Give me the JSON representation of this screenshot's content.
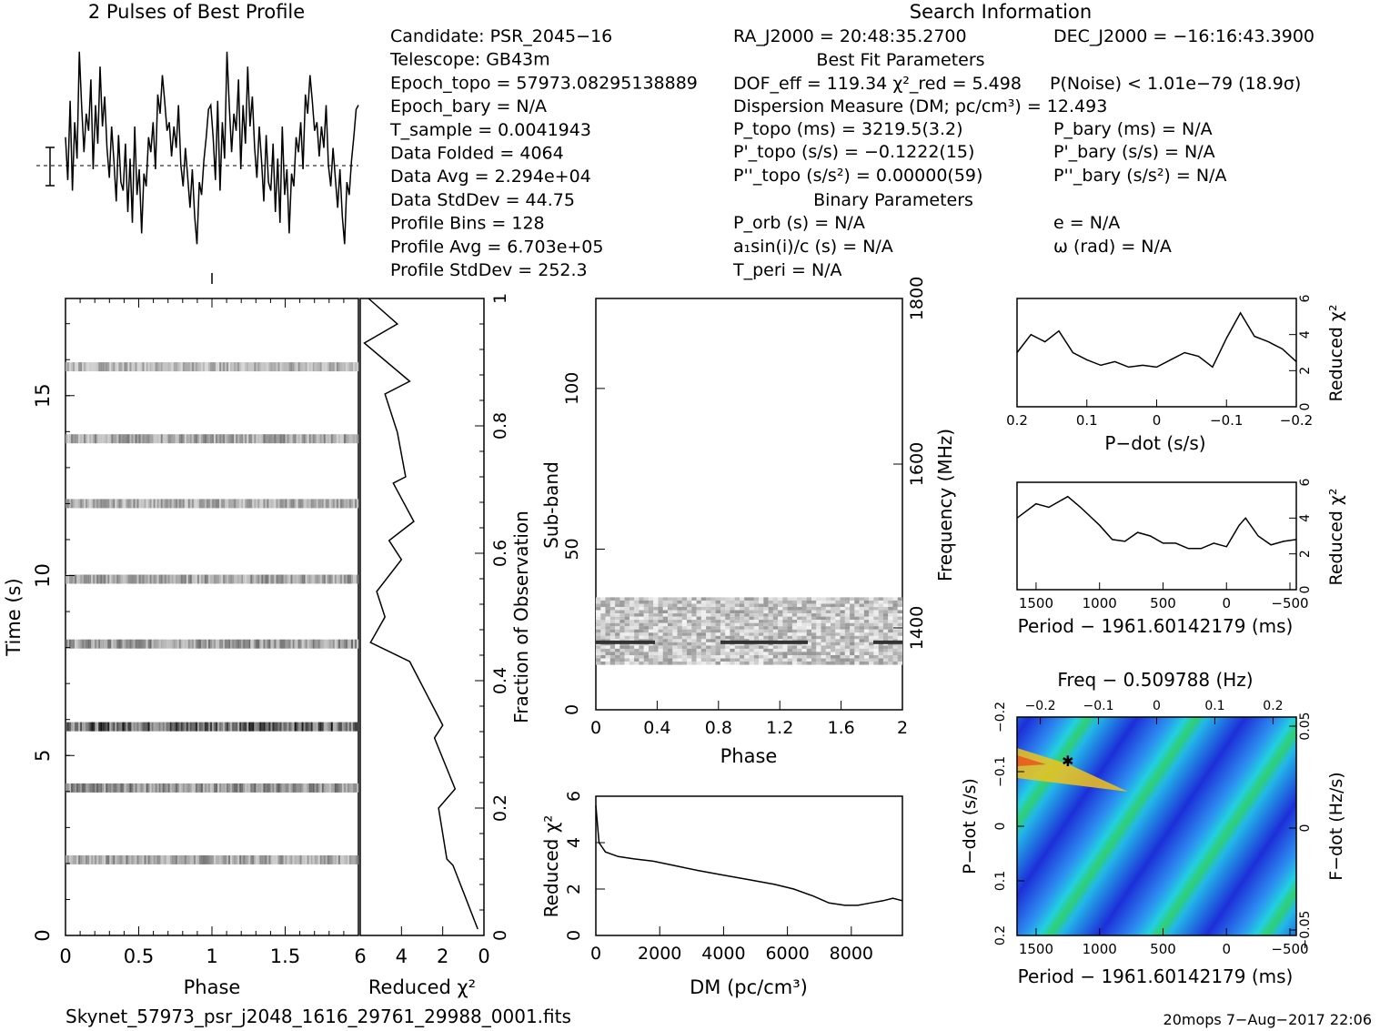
{
  "header": {
    "profile_title": "2 Pulses of Best Profile",
    "search_title": "Search Information",
    "best_fit_title": "Best Fit Parameters",
    "binary_title": "Binary Parameters"
  },
  "info_left": [
    "Candidate:  PSR_2045−16",
    "Telescope:  GB43m",
    "Epoch_topo = 57973.08295138889",
    "Epoch_bary = N/A",
    "T_sample       =  0.0041943",
    "Data Folded    =  4064",
    "Data Avg        =  2.294e+04",
    "Data StdDev    =  44.75",
    "Profile Bins     =  128",
    "Profile Avg      =  6.703e+05",
    "Profile StdDev =  252.3"
  ],
  "info_mid": {
    "ra": "RA_J2000 = 20:48:35.2700",
    "dof": "DOF_eff = 119.34   χ²_red = 5.498",
    "pnoise": "P(Noise) < 1.01e−79   (18.9σ)",
    "dm": "Dispersion Measure (DM; pc/cm³) = 12.493",
    "p": "P_topo (ms) =  3219.5(3.2)",
    "pd": "P'_topo (s/s) = −0.1222(15)",
    "pdd": "P''_topo (s/s²) =  0.00000(59)",
    "porb": "P_orb (s) = N/A",
    "a1": "a₁sin(i)/c (s) = N/A",
    "tperi": "T_peri = N/A"
  },
  "info_right": {
    "dec": "DEC_J2000 = −16:16:43.3900",
    "pbary": "P_bary (ms) = N/A",
    "pdbary": "P'_bary (s/s) = N/A",
    "pddbary": "P''_bary (s/s²) = N/A",
    "e": "e = N/A",
    "omega": "ω (rad) = N/A"
  },
  "footer": {
    "filename": "Skynet_57973_psr_j2048_1616_29761_29988_0001.fits",
    "stamp": "20mops   7−Aug−2017 22:06"
  },
  "colors": {
    "ink": "#000000",
    "grid": "#000000",
    "bg": "#ffffff"
  },
  "chart_data": [
    {
      "id": "profile",
      "type": "line",
      "title": "2 Pulses of Best Profile",
      "xlim": [
        0,
        2
      ],
      "y": [
        0.55,
        0.35,
        0.72,
        0.3,
        0.62,
        0.45,
        0.95,
        0.7,
        0.48,
        0.66,
        0.58,
        0.82,
        0.4,
        0.7,
        0.52,
        0.88,
        0.6,
        0.74,
        0.5,
        0.36,
        0.6,
        0.44,
        0.25,
        0.56,
        0.34,
        0.3,
        0.52,
        0.2,
        0.45,
        0.15,
        0.6,
        0.28,
        0.4,
        0.1,
        0.38,
        0.32,
        0.55,
        0.48,
        0.62,
        0.4,
        0.75,
        0.66,
        0.84,
        0.72,
        0.58,
        0.62,
        0.46,
        0.6,
        0.5,
        0.7,
        0.42,
        0.32,
        0.5,
        0.36,
        0.22,
        0.4,
        0.18,
        0.05,
        0.34,
        0.28,
        0.44,
        0.55,
        0.68,
        0.7
      ]
    },
    {
      "id": "time-phase",
      "type": "heatmap",
      "xlabel": "Phase",
      "ylabel": "Time (s)",
      "xlim": [
        0,
        2
      ],
      "ylim": [
        0,
        17.7
      ],
      "xticks": [
        "0",
        "0.5",
        "1",
        "1.5"
      ],
      "yticks": [
        "0",
        "5",
        "10",
        "15"
      ],
      "band_times": [
        2.1,
        4.1,
        5.8,
        8.1,
        9.9,
        12.0,
        13.8,
        15.8
      ],
      "band_strength": [
        0.55,
        0.65,
        0.95,
        0.6,
        0.55,
        0.5,
        0.55,
        0.45
      ]
    },
    {
      "id": "redchi-time",
      "type": "line",
      "xlabel": "Reduced χ²",
      "ylabel": "Fraction of Observation",
      "xlim": [
        6,
        0
      ],
      "ylim": [
        0,
        1
      ],
      "xticks": [
        "6",
        "4",
        "2",
        "0"
      ],
      "yticks": [
        "0",
        "0.2",
        "0.4",
        "0.6",
        "0.8",
        "1"
      ],
      "x": [
        0.3,
        1.5,
        1.8,
        2.2,
        1.4,
        2.4,
        2.0,
        3.6,
        5.5,
        4.8,
        5.2,
        4.0,
        4.6,
        3.4,
        4.4,
        3.8,
        4.2,
        4.8,
        3.6,
        5.8,
        4.2,
        5.6
      ],
      "y": [
        0.01,
        0.11,
        0.12,
        0.2,
        0.23,
        0.31,
        0.33,
        0.43,
        0.46,
        0.5,
        0.54,
        0.59,
        0.62,
        0.65,
        0.71,
        0.72,
        0.79,
        0.85,
        0.87,
        0.93,
        0.96,
        1.0
      ]
    },
    {
      "id": "subband-phase",
      "type": "heatmap",
      "xlabel": "Phase",
      "ylabel": "Sub-band",
      "y2label": "Frequency (MHz)",
      "xlim": [
        0,
        2
      ],
      "ylim": [
        0,
        128
      ],
      "xticks": [
        "0",
        "0.4",
        "0.8",
        "1.2",
        "1.6",
        "2"
      ],
      "yticks": [
        "0",
        "50",
        "100"
      ],
      "y2ticks": [
        "1400",
        "1600",
        "1800"
      ],
      "band_range": [
        14,
        35
      ],
      "dark_row": 21
    },
    {
      "id": "redchi-dm",
      "type": "line",
      "xlabel": "DM (pc/cm³)",
      "ylabel": "Reduced χ²",
      "xlim": [
        0,
        9600
      ],
      "ylim": [
        0,
        6
      ],
      "xticks": [
        "0",
        "2000",
        "4000",
        "6000",
        "8000"
      ],
      "yticks": [
        "0",
        "2",
        "4",
        "6"
      ],
      "x": [
        0,
        100,
        300,
        700,
        1200,
        1800,
        2500,
        3200,
        4000,
        4800,
        5600,
        6200,
        6800,
        7300,
        7800,
        8200,
        8600,
        9000,
        9300,
        9600
      ],
      "y": [
        5.6,
        4.0,
        3.6,
        3.4,
        3.3,
        3.2,
        3.0,
        2.8,
        2.6,
        2.4,
        2.2,
        2.0,
        1.7,
        1.4,
        1.3,
        1.3,
        1.4,
        1.5,
        1.6,
        1.5
      ]
    },
    {
      "id": "redchi-pdot",
      "type": "line",
      "xlabel": "P−dot (s/s)",
      "ylabel": "Reduced χ²",
      "xlim": [
        0.2,
        -0.2
      ],
      "ylim": [
        0,
        6
      ],
      "xticks": [
        "0.2",
        "0.1",
        "0",
        "−0.1",
        "−0.2"
      ],
      "yticks": [
        "0",
        "2",
        "4",
        "6"
      ],
      "x": [
        0.2,
        0.18,
        0.16,
        0.14,
        0.12,
        0.1,
        0.08,
        0.06,
        0.04,
        0.02,
        0.0,
        -0.02,
        -0.04,
        -0.06,
        -0.08,
        -0.1,
        -0.12,
        -0.14,
        -0.16,
        -0.18,
        -0.2
      ],
      "y": [
        3.0,
        4.0,
        3.6,
        4.2,
        3.0,
        2.6,
        2.3,
        2.5,
        2.2,
        2.3,
        2.2,
        2.6,
        3.0,
        2.8,
        2.2,
        3.8,
        5.2,
        3.9,
        3.6,
        3.2,
        2.5
      ]
    },
    {
      "id": "redchi-period",
      "type": "line",
      "xlabel": "Period − 1961.60142179 (ms)",
      "ylabel": "Reduced χ²",
      "xlim": [
        1650,
        -550
      ],
      "ylim": [
        0,
        6
      ],
      "xticks": [
        "1500",
        "1000",
        "500",
        "0",
        "−500"
      ],
      "yticks": [
        "0",
        "2",
        "4",
        "6"
      ],
      "x": [
        1650,
        1500,
        1400,
        1250,
        1150,
        1000,
        900,
        800,
        700,
        600,
        500,
        400,
        300,
        200,
        100,
        0,
        -100,
        -150,
        -250,
        -350,
        -450,
        -550
      ],
      "y": [
        4.0,
        4.8,
        4.6,
        5.2,
        4.6,
        3.6,
        2.8,
        2.7,
        3.2,
        3.0,
        2.6,
        2.6,
        2.3,
        2.3,
        2.6,
        2.4,
        3.6,
        4.0,
        3.0,
        2.5,
        2.7,
        2.8
      ]
    },
    {
      "id": "pdot-period",
      "type": "heatmap",
      "title": "Freq − 0.509788 (Hz)",
      "xlabel": "Period − 1961.60142179 (ms)",
      "ylabel": "P−dot (s/s)",
      "y2label": "F−dot (Hz/s)",
      "xlim": [
        1650,
        -550
      ],
      "ylim": [
        0.2,
        -0.2
      ],
      "xticks": [
        "1500",
        "1000",
        "500",
        "0",
        "−500"
      ],
      "yticks": [
        "0.2",
        "0.1",
        "0",
        "−0.1",
        "−0.2"
      ],
      "x2ticks": [
        "−0.2",
        "−0.1",
        "0",
        "0.1",
        "0.2"
      ],
      "y2ticks": [
        "0.05",
        "0",
        "−0.05"
      ],
      "best": {
        "period": 1250,
        "pdot": -0.12
      }
    }
  ]
}
